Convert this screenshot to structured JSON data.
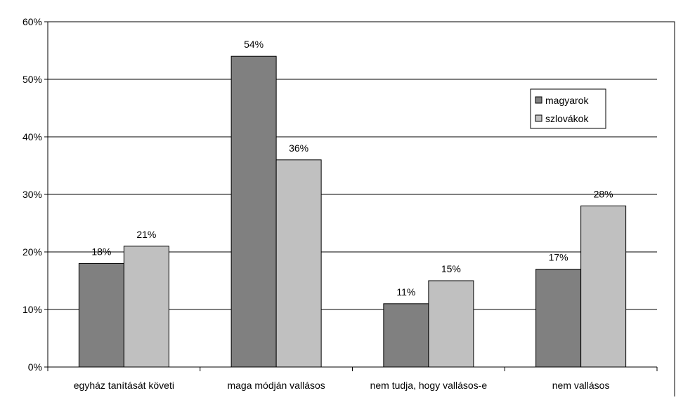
{
  "chart_data": {
    "type": "bar",
    "categories": [
      "egyház tanítását követi",
      "maga módján vallásos",
      "nem tudja, hogy vallásos-e",
      "nem vallásos"
    ],
    "series": [
      {
        "name": "magyarok",
        "values": [
          18,
          54,
          11,
          17
        ],
        "color": "#808080"
      },
      {
        "name": "szlovákok",
        "values": [
          21,
          36,
          15,
          28
        ],
        "color": "#c0c0c0"
      }
    ],
    "data_labels": [
      [
        "18%",
        "54%",
        "11%",
        "17%"
      ],
      [
        "21%",
        "36%",
        "15%",
        "28%"
      ]
    ],
    "y_ticks": [
      0,
      10,
      20,
      30,
      40,
      50,
      60
    ],
    "y_tick_labels": [
      "0%",
      "10%",
      "20%",
      "30%",
      "40%",
      "50%",
      "60%"
    ],
    "ylim": [
      0,
      60
    ],
    "grid": true,
    "legend_position": "right",
    "title": "",
    "xlabel": "",
    "ylabel": ""
  }
}
